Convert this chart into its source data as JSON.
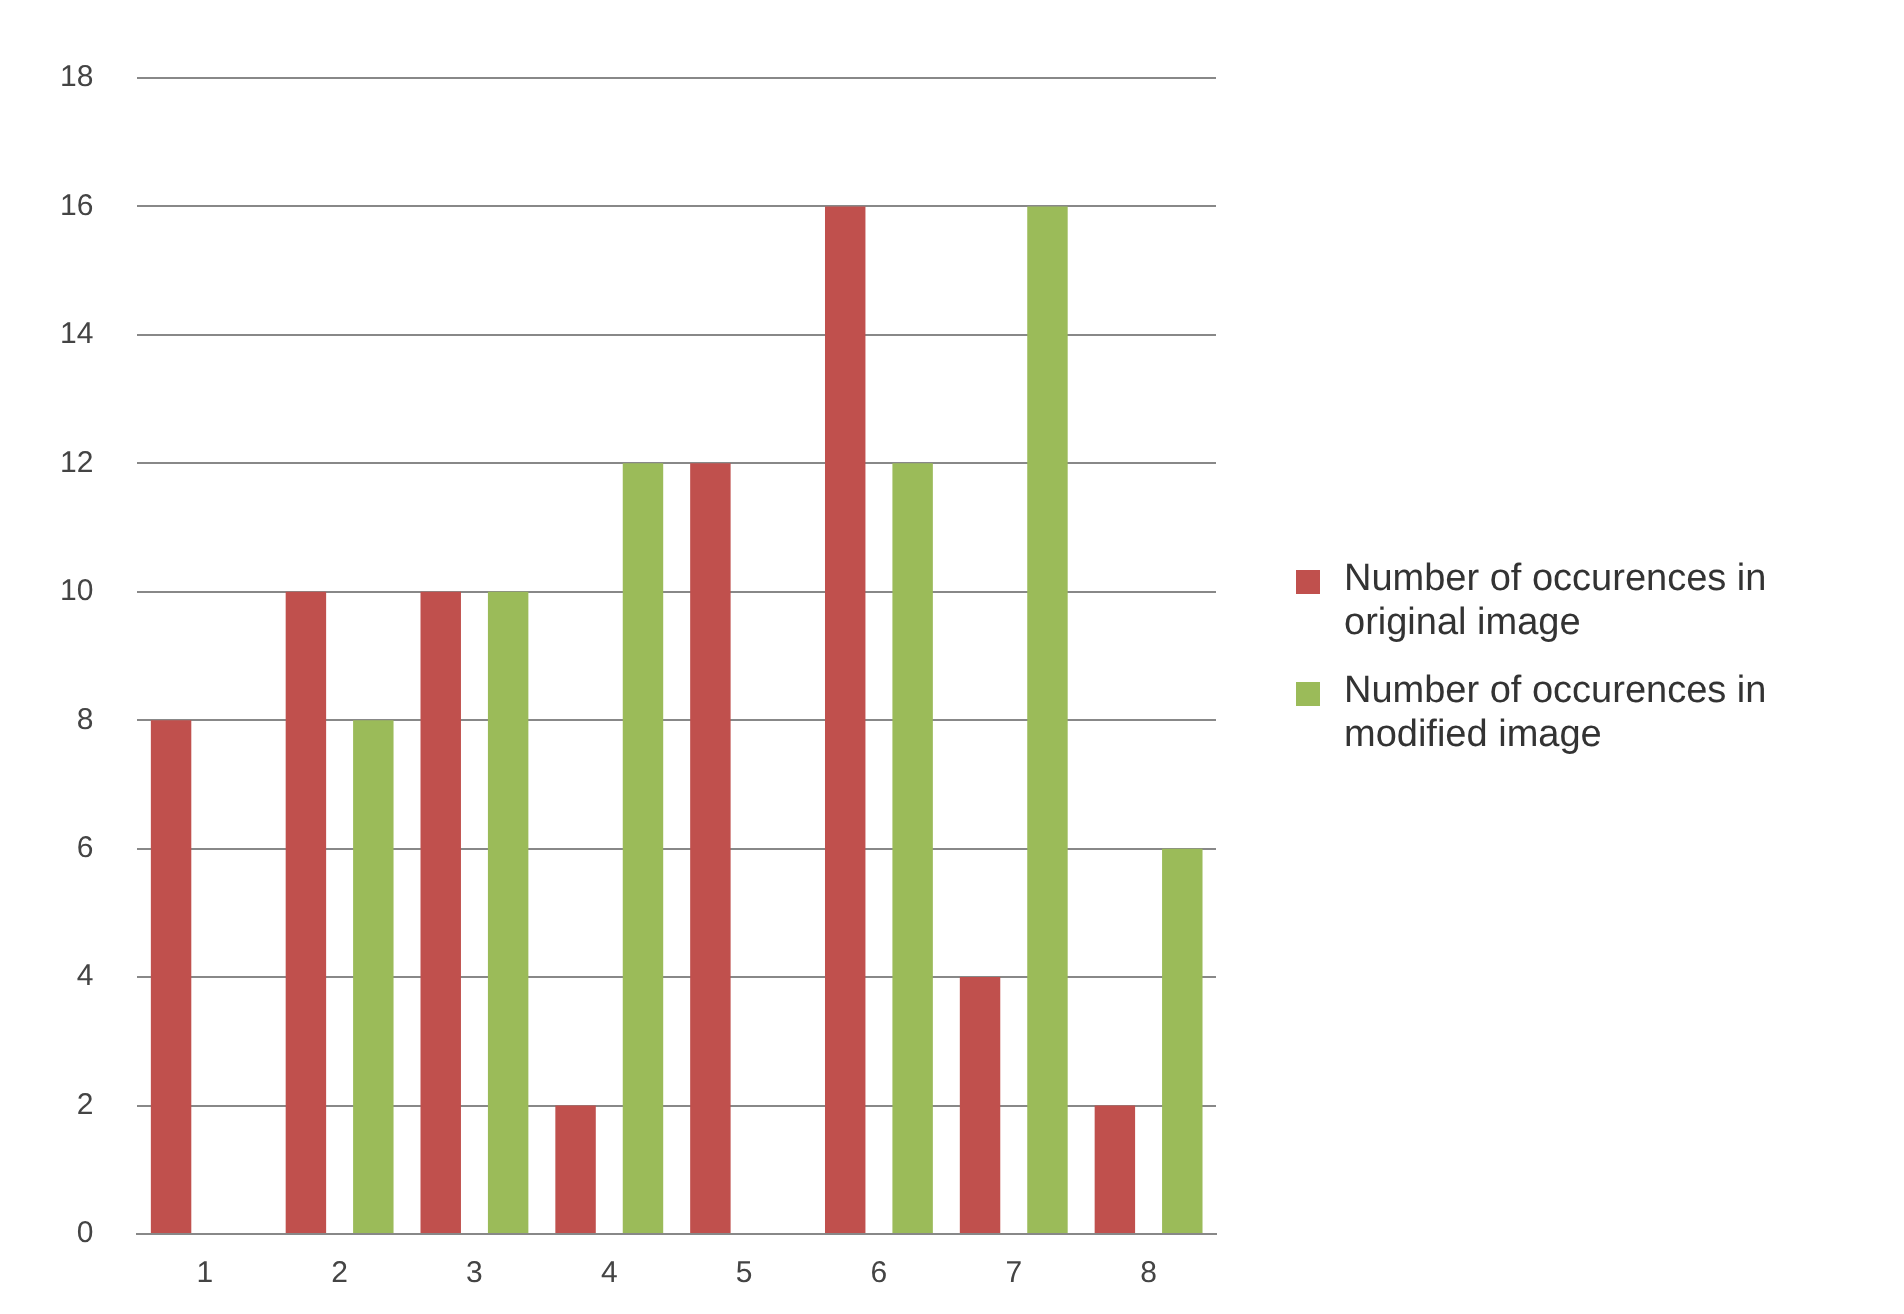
{
  "chart_data": {
    "type": "bar",
    "categories": [
      "1",
      "2",
      "3",
      "4",
      "5",
      "6",
      "7",
      "8"
    ],
    "series": [
      {
        "name": "Number of occurences in original image",
        "color": "#c0504d",
        "values": [
          8,
          10,
          10,
          2,
          12,
          16,
          4,
          2
        ]
      },
      {
        "name": "Number of occurences in modified image",
        "color": "#9bbb59",
        "values": [
          0,
          8,
          10,
          12,
          0,
          12,
          16,
          6
        ]
      }
    ],
    "ylim": [
      0,
      18
    ],
    "yticks": [
      0,
      2,
      4,
      6,
      8,
      10,
      12,
      14,
      16,
      18
    ],
    "grid": "y",
    "legend": "right"
  }
}
